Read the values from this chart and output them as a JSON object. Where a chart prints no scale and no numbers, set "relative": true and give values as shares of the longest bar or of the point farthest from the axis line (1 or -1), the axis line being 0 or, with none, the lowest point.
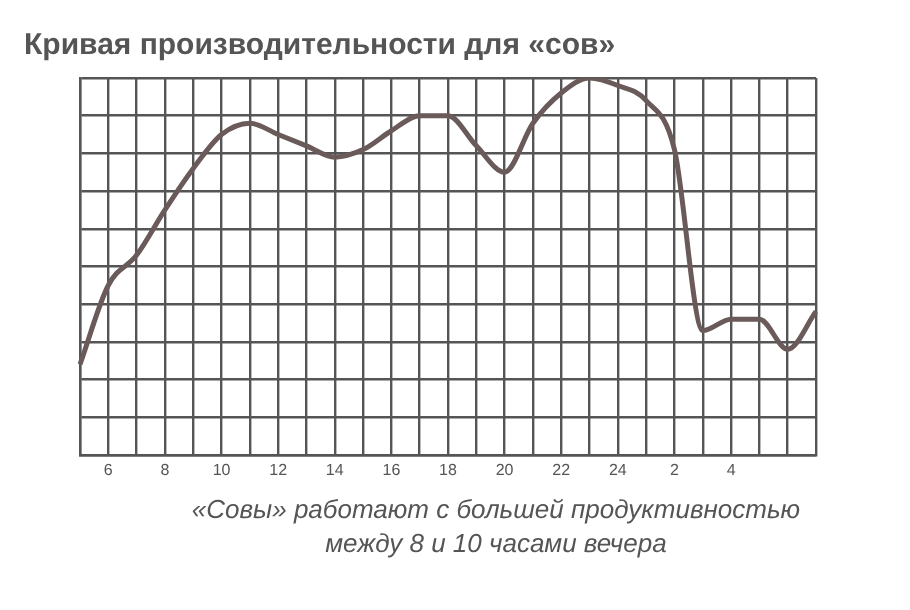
{
  "chart_data": {
    "type": "line",
    "title": "Кривая производительности для «сов»",
    "annotations": [
      "«Совы» работают с большей продуктивностью между 8 и 10 часами вечера"
    ],
    "relative": true,
    "grid": true,
    "categories": [
      null,
      "6",
      null,
      "8",
      null,
      "10",
      null,
      "12",
      null,
      "14",
      null,
      "16",
      null,
      "18",
      null,
      "20",
      null,
      "22",
      null,
      "24",
      null,
      "2",
      null,
      "4",
      null,
      null,
      null
    ],
    "series": [
      {
        "color": "#6b5a5a",
        "values": [
          0.24,
          0.45,
          0.53,
          0.65,
          0.76,
          0.85,
          0.88,
          0.85,
          0.82,
          0.79,
          0.81,
          0.86,
          0.9,
          0.9,
          0.82,
          0.75,
          0.88,
          0.96,
          1,
          0.98,
          0.94,
          0.81,
          0.33,
          0.36,
          0.36,
          0.28,
          0.38
        ]
      }
    ]
  }
}
